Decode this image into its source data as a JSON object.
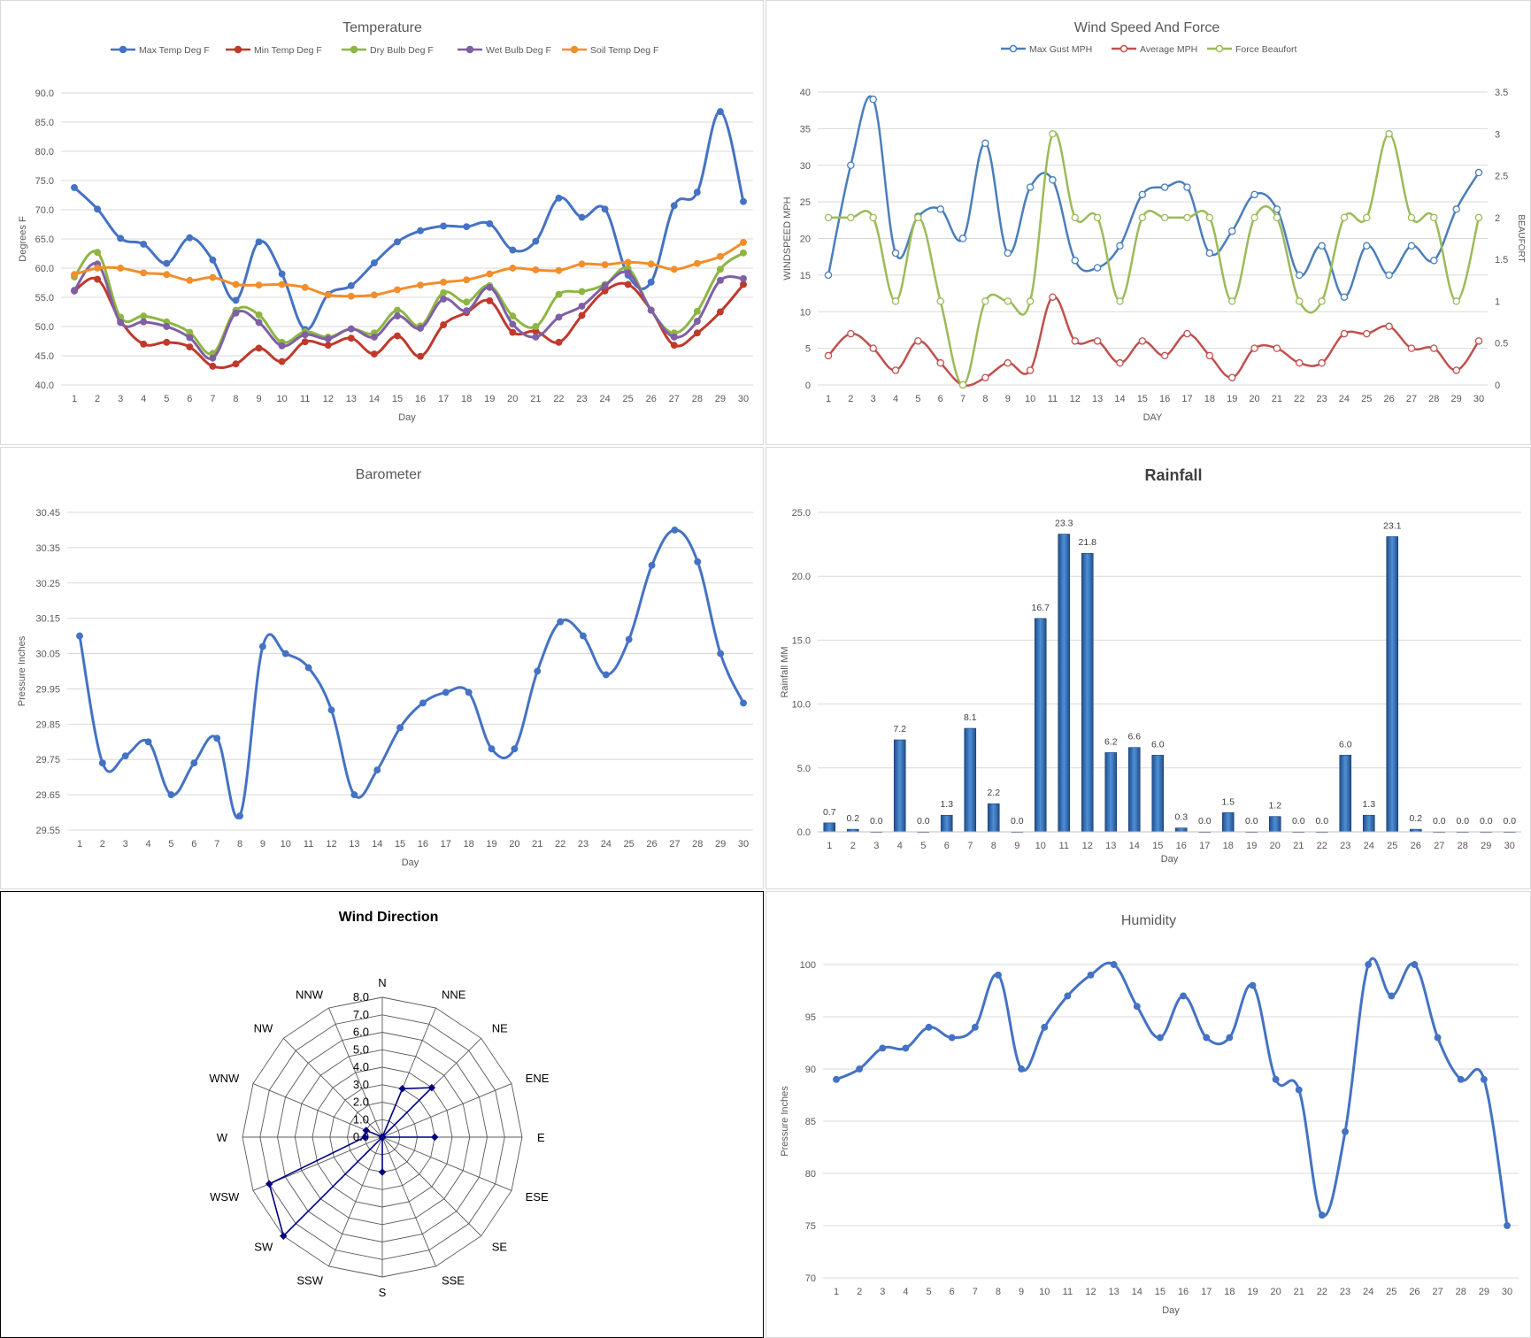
{
  "chart_data": [
    {
      "type": "line",
      "title": "Temperature",
      "xlabel": "Day",
      "ylabel": "Degrees F",
      "x": [
        1,
        2,
        3,
        4,
        5,
        6,
        7,
        8,
        9,
        10,
        11,
        12,
        13,
        14,
        15,
        16,
        17,
        18,
        19,
        20,
        21,
        22,
        23,
        24,
        25,
        26,
        27,
        28,
        29,
        30
      ],
      "ylim": [
        40,
        90
      ],
      "yticks": [
        "40.0",
        "45.0",
        "50.0",
        "55.0",
        "60.0",
        "65.0",
        "70.0",
        "75.0",
        "80.0",
        "85.0",
        "90.0"
      ],
      "grid": true,
      "legend": "top",
      "series": [
        {
          "name": "Max Temp Deg F",
          "color": "#4472c4",
          "values": [
            73.8,
            70.1,
            65.1,
            64.1,
            60.8,
            65.2,
            61.4,
            54.5,
            64.5,
            59.0,
            49.5,
            55.5,
            57.0,
            60.9,
            64.5,
            66.4,
            67.2,
            67.1,
            67.6,
            63.1,
            64.6,
            72.0,
            68.7,
            70.1,
            58.8,
            57.6,
            70.7,
            73.0,
            86.8,
            71.4
          ]
        },
        {
          "name": "Min Temp Deg F",
          "color": "#c0392b",
          "values": [
            56.1,
            58.1,
            51.0,
            47.0,
            47.3,
            46.5,
            43.2,
            43.6,
            46.3,
            44.0,
            47.4,
            46.8,
            48.0,
            45.3,
            48.4,
            44.9,
            50.3,
            52.4,
            54.4,
            49.0,
            49.2,
            47.3,
            51.9,
            56.1,
            57.2,
            52.8,
            46.8,
            48.9,
            52.5,
            57.2
          ]
        },
        {
          "name": "Dry Bulb Deg F",
          "color": "#8db641",
          "values": [
            58.5,
            62.7,
            51.6,
            51.8,
            50.8,
            49.0,
            45.4,
            52.8,
            52.0,
            47.3,
            49.1,
            48.2,
            49.6,
            48.9,
            52.8,
            50.1,
            55.8,
            54.2,
            57.0,
            51.8,
            50.0,
            55.5,
            56.0,
            57.2,
            59.9,
            52.8,
            48.9,
            52.6,
            59.8,
            62.6
          ]
        },
        {
          "name": "Wet Bulb Deg F",
          "color": "#7f5fa6",
          "values": [
            56.2,
            60.7,
            50.7,
            50.8,
            50.0,
            48.1,
            44.6,
            52.3,
            50.7,
            46.7,
            48.6,
            47.9,
            49.6,
            48.2,
            51.8,
            49.7,
            54.7,
            52.7,
            56.7,
            50.4,
            48.2,
            51.6,
            53.5,
            57.0,
            59.2,
            52.8,
            48.2,
            50.9,
            57.9,
            58.2
          ]
        },
        {
          "name": "Soil Temp Deg F",
          "color": "#f28e2b",
          "values": [
            58.9,
            60.0,
            60.0,
            59.2,
            58.9,
            57.9,
            58.4,
            57.2,
            57.1,
            57.2,
            56.7,
            55.4,
            55.2,
            55.4,
            56.3,
            57.1,
            57.6,
            58.0,
            59.0,
            60.0,
            59.7,
            59.6,
            60.7,
            60.6,
            61.0,
            60.7,
            59.8,
            60.8,
            62.0,
            64.4
          ]
        }
      ]
    },
    {
      "type": "line",
      "title": "Wind Speed And Force",
      "xlabel": "DAY",
      "ylabel": "WINDSPEED MPH",
      "y2label": "BEAUFORT",
      "x": [
        1,
        2,
        3,
        4,
        5,
        6,
        7,
        8,
        9,
        10,
        11,
        12,
        13,
        14,
        15,
        16,
        17,
        18,
        19,
        20,
        21,
        22,
        23,
        24,
        25,
        26,
        27,
        28,
        29,
        30
      ],
      "ylim": [
        0,
        40
      ],
      "yticks": [
        "0",
        "5",
        "10",
        "15",
        "20",
        "25",
        "30",
        "35",
        "40"
      ],
      "y2lim": [
        0,
        3.5
      ],
      "y2ticks": [
        "0",
        "0.5",
        "1",
        "1.5",
        "2",
        "2.5",
        "3",
        "3.5"
      ],
      "grid": true,
      "legend": "top",
      "series": [
        {
          "name": "Max Gust MPH",
          "axis": "left",
          "color": "#4a7ebb",
          "values": [
            15,
            30,
            39,
            18,
            23,
            24,
            20,
            33,
            18,
            27,
            28,
            17,
            16,
            19,
            26,
            27,
            27,
            18,
            21,
            26,
            24,
            15,
            19,
            12,
            19,
            15,
            19,
            17,
            24,
            29
          ]
        },
        {
          "name": "Average MPH",
          "axis": "left",
          "color": "#c0504d",
          "values": [
            4,
            7,
            5,
            2,
            6,
            3,
            0,
            1,
            3,
            2,
            12,
            6,
            6,
            3,
            6,
            4,
            7,
            4,
            1,
            5,
            5,
            3,
            3,
            7,
            7,
            8,
            5,
            5,
            2,
            6
          ]
        },
        {
          "name": "Force Beaufort",
          "axis": "right",
          "color": "#9bbb59",
          "values": [
            2,
            2,
            2,
            1,
            2,
            1,
            0,
            1,
            1,
            1,
            3,
            2,
            2,
            1,
            2,
            2,
            2,
            2,
            1,
            2,
            2,
            1,
            1,
            2,
            2,
            3,
            2,
            2,
            1,
            2
          ]
        }
      ]
    },
    {
      "type": "line",
      "title": "Barometer",
      "xlabel": "Day",
      "ylabel": "Pressure Inches",
      "x": [
        1,
        2,
        3,
        4,
        5,
        6,
        7,
        8,
        9,
        10,
        11,
        12,
        13,
        14,
        15,
        16,
        17,
        18,
        19,
        20,
        21,
        22,
        23,
        24,
        25,
        26,
        27,
        28,
        29,
        30
      ],
      "ylim": [
        29.55,
        30.45
      ],
      "yticks": [
        "29.55",
        "29.65",
        "29.75",
        "29.85",
        "29.95",
        "30.05",
        "30.15",
        "30.25",
        "30.35",
        "30.45"
      ],
      "grid": true,
      "series": [
        {
          "name": "",
          "color": "#4472c4",
          "values": [
            30.1,
            29.74,
            29.76,
            29.8,
            29.65,
            29.74,
            29.81,
            29.59,
            30.07,
            30.05,
            30.01,
            29.89,
            29.65,
            29.72,
            29.84,
            29.91,
            29.94,
            29.94,
            29.78,
            29.78,
            30.0,
            30.14,
            30.1,
            29.99,
            30.09,
            30.3,
            30.4,
            30.31,
            30.05,
            29.91
          ]
        }
      ]
    },
    {
      "type": "bar",
      "title": "Rainfall",
      "xlabel": "Day",
      "ylabel": "Rainfall MM",
      "categories": [
        "1",
        "2",
        "3",
        "4",
        "5",
        "6",
        "7",
        "8",
        "9",
        "10",
        "11",
        "12",
        "13",
        "14",
        "15",
        "16",
        "17",
        "18",
        "19",
        "20",
        "21",
        "22",
        "23",
        "24",
        "25",
        "26",
        "27",
        "28",
        "29",
        "30"
      ],
      "ylim": [
        0,
        25
      ],
      "yticks": [
        "0.0",
        "5.0",
        "10.0",
        "15.0",
        "20.0",
        "25.0"
      ],
      "grid": true,
      "series": [
        {
          "name": "",
          "color": "#2e75b6",
          "values": [
            0.7,
            0.2,
            0.0,
            7.2,
            0.0,
            1.3,
            8.1,
            2.2,
            0.0,
            16.7,
            23.3,
            21.8,
            6.2,
            6.6,
            6.0,
            0.3,
            0.0,
            1.5,
            0.0,
            1.2,
            0.0,
            0.0,
            6.0,
            1.3,
            23.1,
            0.2,
            0.0,
            0.0,
            0.0,
            0.0
          ]
        }
      ],
      "data_labels": [
        "0.7",
        "0.2",
        "0.0",
        "7.2",
        "0.0",
        "1.3",
        "8.1",
        "2.2",
        "0.0",
        "16.7",
        "23.3",
        "21.8",
        "6.2",
        "6.6",
        "6.0",
        "0.3",
        "0.0",
        "1.5",
        "0.0",
        "1.2",
        "0.0",
        "0.0",
        "6.0",
        "1.3",
        "23.1",
        "0.2",
        "0.0",
        "0.0",
        "0.0",
        "0.0"
      ]
    },
    {
      "type": "radar",
      "title": "Wind Direction",
      "categories": [
        "N",
        "NNE",
        "NE",
        "ENE",
        "E",
        "ESE",
        "SE",
        "SSE",
        "S",
        "SSW",
        "SW",
        "WSW",
        "W",
        "WNW",
        "NW",
        "NNW"
      ],
      "rlim": [
        0,
        8
      ],
      "rticks": [
        "0.0",
        "1.0",
        "2.0",
        "3.0",
        "4.0",
        "5.0",
        "6.0",
        "7.0",
        "8.0"
      ],
      "series": [
        {
          "name": "",
          "color": "#000080",
          "values": [
            0,
            3,
            4,
            0,
            3,
            0,
            0,
            0,
            2,
            0,
            8,
            7,
            1,
            1,
            0,
            0
          ]
        }
      ]
    },
    {
      "type": "line",
      "title": "Humidity",
      "xlabel": "Day",
      "ylabel": "Pressure Inches",
      "x": [
        1,
        2,
        3,
        4,
        5,
        6,
        7,
        8,
        9,
        10,
        11,
        12,
        13,
        14,
        15,
        16,
        17,
        18,
        19,
        20,
        21,
        22,
        23,
        24,
        25,
        26,
        27,
        28,
        29,
        30
      ],
      "ylim": [
        70,
        100
      ],
      "yticks": [
        "70",
        "75",
        "80",
        "85",
        "90",
        "95",
        "100"
      ],
      "grid": true,
      "series": [
        {
          "name": "",
          "color": "#4472c4",
          "values": [
            89,
            90,
            92,
            92,
            94,
            93,
            94,
            99,
            90,
            94,
            97,
            99,
            100,
            96,
            93,
            97,
            93,
            93,
            98,
            89,
            88,
            76,
            84,
            100,
            97,
            100,
            93,
            89,
            89,
            75
          ]
        }
      ]
    }
  ]
}
